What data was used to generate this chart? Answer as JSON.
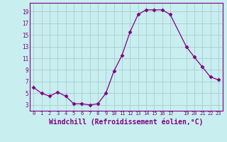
{
  "x": [
    0,
    1,
    2,
    3,
    4,
    5,
    6,
    7,
    8,
    9,
    10,
    11,
    12,
    13,
    14,
    15,
    16,
    17,
    19,
    20,
    21,
    22,
    23
  ],
  "y": [
    6.0,
    5.0,
    4.5,
    5.2,
    4.5,
    3.2,
    3.2,
    3.0,
    3.2,
    5.0,
    8.8,
    11.5,
    15.5,
    18.5,
    19.3,
    19.3,
    19.3,
    18.5,
    13.0,
    11.2,
    9.5,
    7.8,
    7.3
  ],
  "line_color": "#800080",
  "marker": "D",
  "marker_size": 2.5,
  "bg_color": "#c8eef0",
  "grid_color": "#a0c8c8",
  "xlabel": "Windchill (Refroidissement éolien,°C)",
  "xlabel_fontsize": 7,
  "yticks": [
    3,
    5,
    7,
    9,
    11,
    13,
    15,
    17,
    19
  ],
  "xticks": [
    0,
    1,
    2,
    3,
    4,
    5,
    6,
    7,
    8,
    9,
    10,
    11,
    12,
    13,
    14,
    15,
    16,
    17,
    19,
    20,
    21,
    22,
    23
  ],
  "ylim": [
    2.0,
    20.5
  ],
  "xlim": [
    -0.5,
    23.5
  ]
}
